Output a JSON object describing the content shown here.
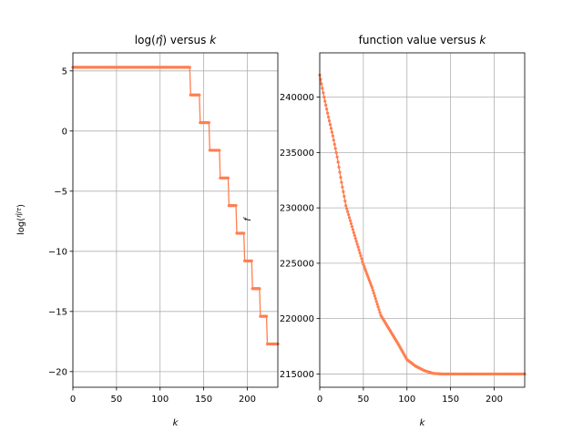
{
  "chart_data": [
    {
      "type": "line",
      "title": "log(η̂) versus k",
      "title_parts": {
        "pre": "log(",
        "eta": "η̂",
        "post": ") versus ",
        "k": "k"
      },
      "xlabel": "k",
      "ylabel": "log(η̂/τ)",
      "ylabel_parts": {
        "pre": "log(",
        "num": "η̂",
        "den": "τ",
        "post": ")"
      },
      "xlim": [
        0,
        235
      ],
      "ylim": [
        -21.3,
        6.5
      ],
      "xticks": [
        0,
        50,
        100,
        150,
        200
      ],
      "yticks": [
        -20,
        -15,
        -10,
        -5,
        0,
        5
      ],
      "ytick_labels": [
        "−20",
        "−15",
        "−10",
        "−5",
        "0",
        "5"
      ],
      "grid": true,
      "color": "#ff7f50",
      "steps": [
        {
          "x_start": 0,
          "x_end": 134,
          "y": 5.3
        },
        {
          "x_start": 135,
          "x_end": 145,
          "y": 3.0
        },
        {
          "x_start": 146,
          "x_end": 156,
          "y": 0.7
        },
        {
          "x_start": 157,
          "x_end": 168,
          "y": -1.6
        },
        {
          "x_start": 169,
          "x_end": 178,
          "y": -3.9
        },
        {
          "x_start": 179,
          "x_end": 187,
          "y": -6.2
        },
        {
          "x_start": 188,
          "x_end": 196,
          "y": -8.5
        },
        {
          "x_start": 197,
          "x_end": 205,
          "y": -10.8
        },
        {
          "x_start": 206,
          "x_end": 214,
          "y": -13.1
        },
        {
          "x_start": 215,
          "x_end": 222,
          "y": -15.4
        },
        {
          "x_start": 223,
          "x_end": 235,
          "y": -17.7
        }
      ]
    },
    {
      "type": "line",
      "title": "function value versus k",
      "title_parts": {
        "pre": "function value versus ",
        "k": "k"
      },
      "xlabel": "k",
      "ylabel": "f",
      "xlim": [
        0,
        235
      ],
      "ylim": [
        213800,
        244000
      ],
      "xticks": [
        0,
        50,
        100,
        150,
        200
      ],
      "yticks": [
        215000,
        220000,
        225000,
        230000,
        235000,
        240000
      ],
      "ytick_labels": [
        "215000",
        "220000",
        "225000",
        "230000",
        "235000",
        "240000"
      ],
      "grid": true,
      "color": "#ff7f50",
      "curve_keypoints": [
        {
          "x": 0,
          "y": 242000
        },
        {
          "x": 5,
          "y": 240000
        },
        {
          "x": 10,
          "y": 238200
        },
        {
          "x": 15,
          "y": 236500
        },
        {
          "x": 20,
          "y": 234600
        },
        {
          "x": 25,
          "y": 232300
        },
        {
          "x": 30,
          "y": 230200
        },
        {
          "x": 40,
          "y": 227500
        },
        {
          "x": 50,
          "y": 224900
        },
        {
          "x": 60,
          "y": 222800
        },
        {
          "x": 70,
          "y": 220300
        },
        {
          "x": 80,
          "y": 219000
        },
        {
          "x": 90,
          "y": 217700
        },
        {
          "x": 100,
          "y": 216300
        },
        {
          "x": 110,
          "y": 215700
        },
        {
          "x": 120,
          "y": 215300
        },
        {
          "x": 130,
          "y": 215050
        },
        {
          "x": 140,
          "y": 215000
        },
        {
          "x": 235,
          "y": 215000
        }
      ]
    }
  ]
}
